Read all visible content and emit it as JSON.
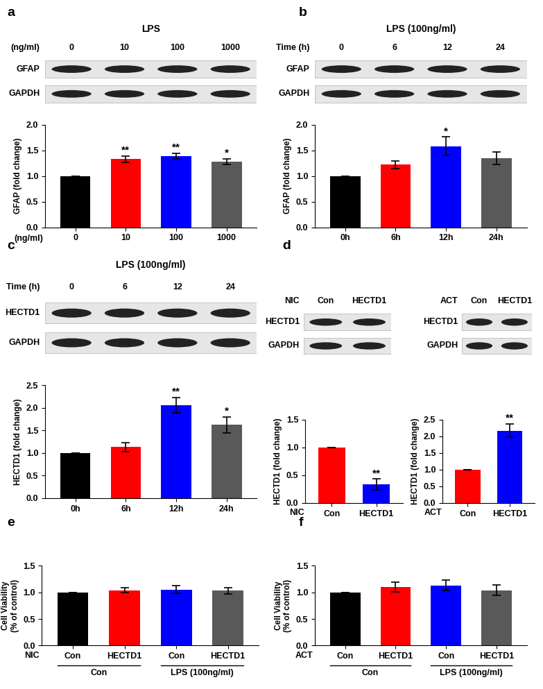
{
  "chart_data": [
    {
      "panel": "a",
      "type": "bar",
      "blot": {
        "header": "LPS",
        "lane_label": "(ng/ml)",
        "lanes": [
          "0",
          "10",
          "100",
          "1000"
        ],
        "rows": [
          "GFAP",
          "GAPDH"
        ]
      },
      "x_prefix": "(ng/ml)",
      "categories": [
        "0",
        "10",
        "100",
        "1000"
      ],
      "values": [
        1.0,
        1.33,
        1.39,
        1.28
      ],
      "errors": [
        0,
        0.06,
        0.05,
        0.06
      ],
      "significance": [
        null,
        "**",
        "**",
        "*"
      ],
      "colors": [
        "#000000",
        "#ff0000",
        "#0000ff",
        "#595959"
      ],
      "y_label": "GFAP (fold change)",
      "ylim": [
        0,
        2.0
      ],
      "yticks": [
        {
          "value": 0,
          "label": "0.0"
        },
        {
          "value": 0.5,
          "label": "0.5"
        },
        {
          "value": 1.0,
          "label": "1.0"
        },
        {
          "value": 1.5,
          "label": "1.5"
        },
        {
          "value": 2.0,
          "label": "2.0"
        }
      ]
    },
    {
      "panel": "b",
      "type": "bar",
      "blot": {
        "header": "LPS (100ng/ml)",
        "lane_label": "Time (h)",
        "lanes": [
          "0",
          "6",
          "12",
          "24"
        ],
        "rows": [
          "GFAP",
          "GAPDH"
        ]
      },
      "categories": [
        "0h",
        "6h",
        "12h",
        "24h"
      ],
      "values": [
        1.0,
        1.22,
        1.58,
        1.35
      ],
      "errors": [
        0,
        0.07,
        0.18,
        0.12
      ],
      "significance": [
        null,
        null,
        "*",
        null
      ],
      "colors": [
        "#000000",
        "#ff0000",
        "#0000ff",
        "#595959"
      ],
      "y_label": "GFAP (fold change)",
      "ylim": [
        0,
        2.0
      ],
      "yticks": [
        {
          "value": 0,
          "label": "0.0"
        },
        {
          "value": 0.5,
          "label": "0.5"
        },
        {
          "value": 1.0,
          "label": "1.0"
        },
        {
          "value": 1.5,
          "label": "1.5"
        },
        {
          "value": 2.0,
          "label": "2.0"
        }
      ]
    },
    {
      "panel": "c",
      "type": "bar",
      "blot": {
        "header": "LPS (100ng/ml)",
        "lane_label": "Time (h)",
        "lanes": [
          "0",
          "6",
          "12",
          "24"
        ],
        "rows": [
          "HECTD1",
          "GAPDH"
        ]
      },
      "categories": [
        "0h",
        "6h",
        "12h",
        "24h"
      ],
      "values": [
        1.0,
        1.13,
        2.05,
        1.62
      ],
      "errors": [
        0,
        0.1,
        0.17,
        0.18
      ],
      "significance": [
        null,
        null,
        "**",
        "*"
      ],
      "colors": [
        "#000000",
        "#ff0000",
        "#0000ff",
        "#595959"
      ],
      "y_label": "HECTD1 (fold change)",
      "ylim": [
        0,
        2.5
      ],
      "yticks": [
        {
          "value": 0,
          "label": "0.0"
        },
        {
          "value": 0.5,
          "label": "0.5"
        },
        {
          "value": 1.0,
          "label": "1.0"
        },
        {
          "value": 1.5,
          "label": "1.5"
        },
        {
          "value": 2.0,
          "label": "2.0"
        },
        {
          "value": 2.5,
          "label": "2.5"
        }
      ]
    },
    {
      "panel": "d",
      "type": "bar",
      "blot": {
        "lane_label": "NIC",
        "lanes": [
          "Con",
          "HECTD1"
        ],
        "rows": [
          "HECTD1",
          "GAPDH"
        ]
      },
      "x_prefix": "NIC",
      "categories": [
        "Con",
        "HECTD1"
      ],
      "values": [
        1.0,
        0.33
      ],
      "errors": [
        0,
        0.1
      ],
      "significance": [
        null,
        "**"
      ],
      "colors": [
        "#ff0000",
        "#0000ff"
      ],
      "y_label": "HECTD1 (fold change)",
      "ylim": [
        0,
        1.5
      ],
      "yticks": [
        {
          "value": 0,
          "label": "0.0"
        },
        {
          "value": 0.5,
          "label": "0.5"
        },
        {
          "value": 1.0,
          "label": "1.0"
        },
        {
          "value": 1.5,
          "label": "1.5"
        }
      ]
    },
    {
      "type": "bar",
      "blot": {
        "lane_label": "ACT",
        "lanes": [
          "Con",
          "HECTD1"
        ],
        "rows": [
          "HECTD1",
          "GAPDH"
        ]
      },
      "x_prefix": "ACT",
      "categories": [
        "Con",
        "HECTD1"
      ],
      "values": [
        1.0,
        2.17
      ],
      "errors": [
        0,
        0.2
      ],
      "significance": [
        null,
        "**"
      ],
      "colors": [
        "#ff0000",
        "#0000ff"
      ],
      "y_label": "HECTD1 (fold change)",
      "ylim": [
        0,
        2.5
      ],
      "yticks": [
        {
          "value": 0,
          "label": "0.0"
        },
        {
          "value": 0.5,
          "label": "0.5"
        },
        {
          "value": 1.0,
          "label": "1.0"
        },
        {
          "value": 1.5,
          "label": "1.5"
        },
        {
          "value": 2.0,
          "label": "2.0"
        },
        {
          "value": 2.5,
          "label": "2.5"
        }
      ]
    },
    {
      "panel": "e",
      "type": "bar",
      "x_prefix": "NIC",
      "categories": [
        "Con",
        "HECTD1",
        "Con",
        "HECTD1"
      ],
      "groups": [
        {
          "label": "Con",
          "span": [
            0,
            1
          ]
        },
        {
          "label": "LPS (100ng/ml)",
          "span": [
            2,
            3
          ]
        }
      ],
      "values": [
        1.0,
        1.04,
        1.05,
        1.03
      ],
      "errors": [
        0,
        0.05,
        0.07,
        0.06
      ],
      "colors": [
        "#000000",
        "#ff0000",
        "#0000ff",
        "#595959"
      ],
      "y_label": "Cell Viability\n(% of control)",
      "ylim": [
        0,
        1.5
      ],
      "yticks": [
        {
          "value": 0,
          "label": "0.0"
        },
        {
          "value": 0.5,
          "label": "0.5"
        },
        {
          "value": 1.0,
          "label": "1.0"
        },
        {
          "value": 1.5,
          "label": "1.5"
        }
      ]
    },
    {
      "panel": "f",
      "type": "bar",
      "x_prefix": "ACT",
      "categories": [
        "Con",
        "HECTD1",
        "Con",
        "HECTD1"
      ],
      "groups": [
        {
          "label": "Con",
          "span": [
            0,
            1
          ]
        },
        {
          "label": "LPS (100ng/ml)",
          "span": [
            2,
            3
          ]
        }
      ],
      "values": [
        1.0,
        1.1,
        1.13,
        1.04
      ],
      "errors": [
        0,
        0.09,
        0.1,
        0.1
      ],
      "colors": [
        "#000000",
        "#ff0000",
        "#0000ff",
        "#595959"
      ],
      "y_label": "Cell Viability\n(% of control)",
      "ylim": [
        0,
        1.5
      ],
      "yticks": [
        {
          "value": 0,
          "label": "0.0"
        },
        {
          "value": 0.5,
          "label": "0.5"
        },
        {
          "value": 1.0,
          "label": "1.0"
        },
        {
          "value": 1.5,
          "label": "1.5"
        }
      ]
    }
  ]
}
